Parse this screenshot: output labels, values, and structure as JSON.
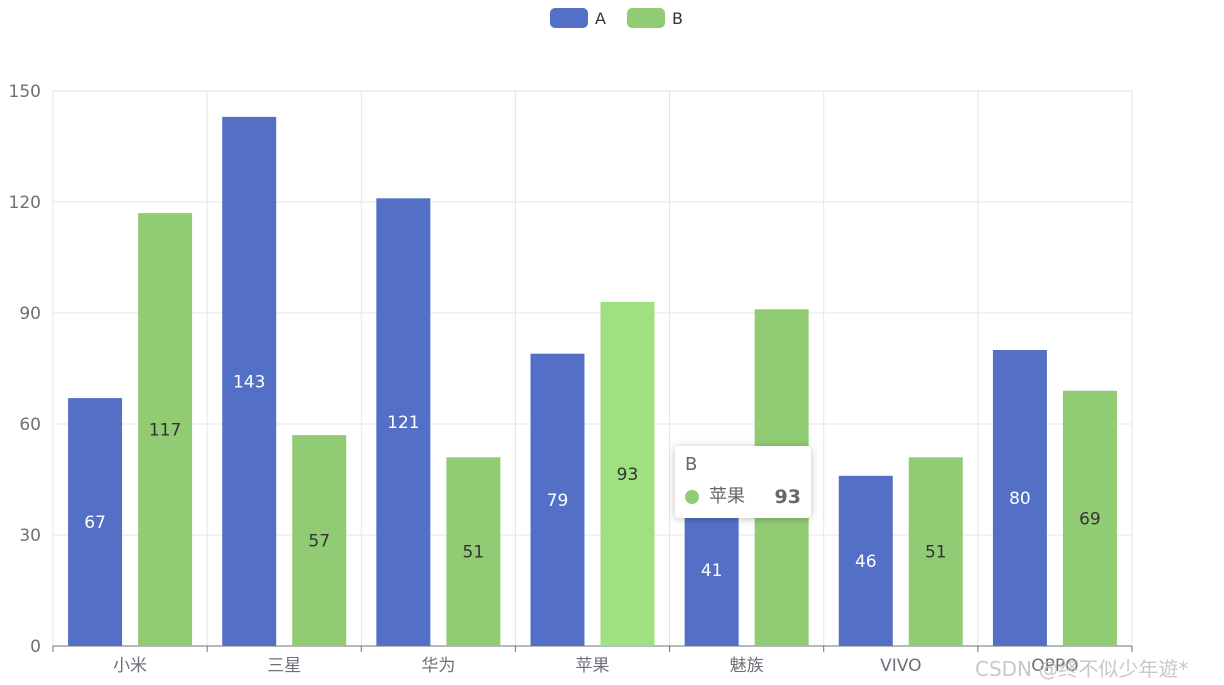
{
  "chart_data": {
    "type": "bar",
    "categories": [
      "小米",
      "三星",
      "华为",
      "苹果",
      "魅族",
      "VIVO",
      "OPPO"
    ],
    "series": [
      {
        "name": "A",
        "color": "#5470c6",
        "values": [
          67,
          143,
          121,
          79,
          41,
          46,
          80
        ]
      },
      {
        "name": "B",
        "color": "#91cc75",
        "values": [
          117,
          57,
          51,
          93,
          91,
          51,
          69
        ]
      }
    ],
    "highlight_color": "#9fe080",
    "ylim": [
      0,
      150
    ],
    "yticks": [
      0,
      30,
      60,
      90,
      120,
      150
    ],
    "grid": true,
    "legend_position": "top-center",
    "data_labels": true,
    "tooltip": {
      "series_name": "B",
      "category": "苹果",
      "value": "93",
      "marker_color": "#91cc75"
    }
  },
  "watermark": "CSDN @终不似少年遊*"
}
